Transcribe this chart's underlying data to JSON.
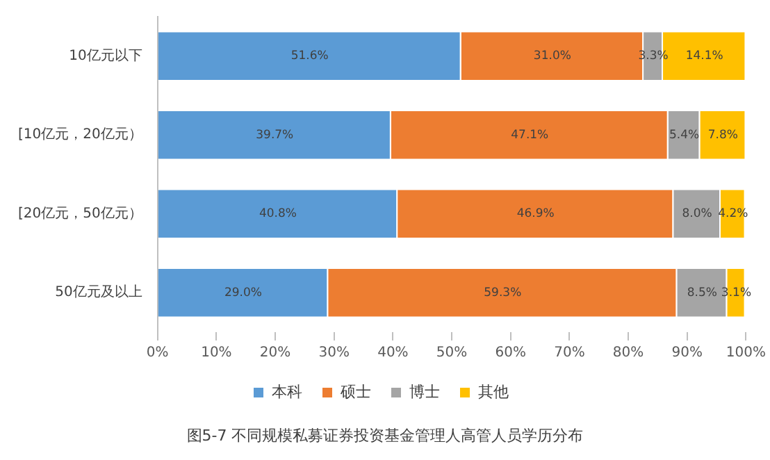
{
  "chart_data": {
    "type": "bar",
    "orientation": "horizontal",
    "stacked": true,
    "title": "图5-7  不同规模私募证券投资基金管理人高管人员学历分布",
    "categories": [
      "10亿元以下",
      "[10亿元，20亿元）",
      "[20亿元，50亿元）",
      "50亿元及以上"
    ],
    "series": [
      {
        "name": "本科",
        "color": "#5b9bd5",
        "values": [
          51.6,
          39.7,
          40.8,
          29.0
        ],
        "value_labels": [
          "51.6%",
          "39.7%",
          "40.8%",
          "29.0%"
        ]
      },
      {
        "name": "硕士",
        "color": "#ed7d31",
        "values": [
          31.0,
          47.1,
          46.9,
          59.3
        ],
        "value_labels": [
          "31.0%",
          "47.1%",
          "46.9%",
          "59.3%"
        ]
      },
      {
        "name": "博士",
        "color": "#a5a5a5",
        "values": [
          3.3,
          5.4,
          8.0,
          8.5
        ],
        "value_labels": [
          "3.3%",
          "5.4%",
          "8.0%",
          "8.5%"
        ]
      },
      {
        "name": "其他",
        "color": "#ffc000",
        "values": [
          14.1,
          7.8,
          4.2,
          3.1
        ],
        "value_labels": [
          "14.1%",
          "7.8%",
          "4.2%",
          "3.1%"
        ]
      }
    ],
    "xlim": [
      0,
      100
    ],
    "xticks": [
      {
        "value": 0,
        "label": "0%"
      },
      {
        "value": 10,
        "label": "10%"
      },
      {
        "value": 20,
        "label": "20%"
      },
      {
        "value": 30,
        "label": "30%"
      },
      {
        "value": 40,
        "label": "40%"
      },
      {
        "value": 50,
        "label": "50%"
      },
      {
        "value": 60,
        "label": "60%"
      },
      {
        "value": 70,
        "label": "70%"
      },
      {
        "value": 80,
        "label": "80%"
      },
      {
        "value": 90,
        "label": "90%"
      },
      {
        "value": 100,
        "label": "100%"
      }
    ],
    "grid": false,
    "legend": "bottom"
  }
}
